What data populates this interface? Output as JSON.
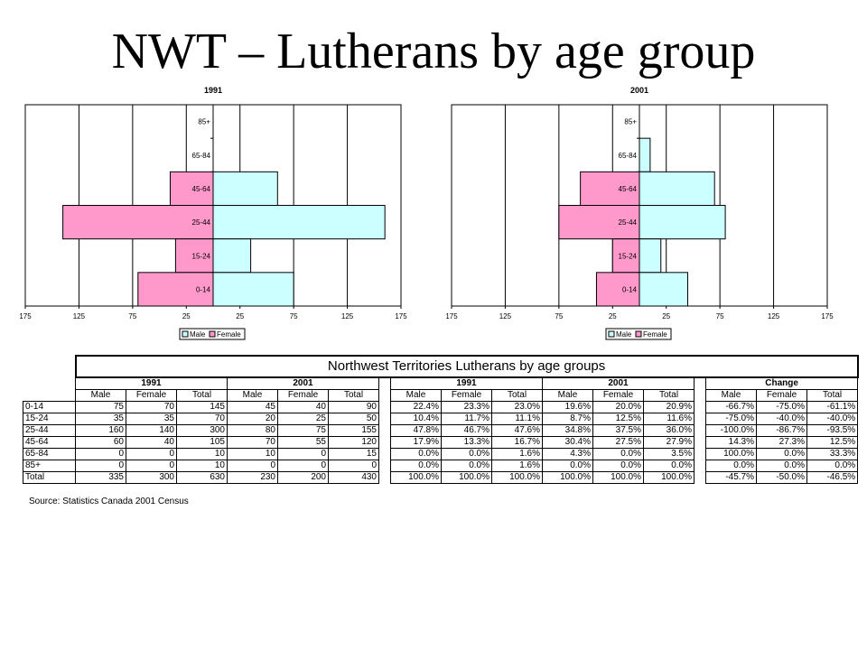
{
  "title": "NWT – Lutherans by age group",
  "chart_data": [
    {
      "type": "bar",
      "orientation": "horizontal-population-pyramid",
      "title": "1991",
      "categories": [
        "85+",
        "65-84",
        "45-64",
        "25-44",
        "15-24",
        "0-14"
      ],
      "series": [
        {
          "name": "Male",
          "values": [
            0,
            0,
            60,
            160,
            35,
            75
          ],
          "color": "#ccffff"
        },
        {
          "name": "Female",
          "values": [
            0,
            0,
            40,
            140,
            35,
            70
          ],
          "color": "#ff99cc"
        }
      ],
      "xlim": [
        -175,
        175
      ],
      "xticks": [
        "175",
        "125",
        "75",
        "25",
        "25",
        "75",
        "125",
        "175"
      ],
      "grid": true,
      "legend": "bottom"
    },
    {
      "type": "bar",
      "orientation": "horizontal-population-pyramid",
      "title": "2001",
      "categories": [
        "85+",
        "65-84",
        "45-64",
        "25-44",
        "15-24",
        "0-14"
      ],
      "series": [
        {
          "name": "Male",
          "values": [
            0,
            10,
            70,
            80,
            20,
            45
          ],
          "color": "#ccffff"
        },
        {
          "name": "Female",
          "values": [
            0,
            0,
            55,
            75,
            25,
            40
          ],
          "color": "#ff99cc"
        }
      ],
      "xlim": [
        -175,
        175
      ],
      "xticks": [
        "175",
        "125",
        "75",
        "25",
        "25",
        "75",
        "125",
        "175"
      ],
      "grid": true,
      "legend": "bottom"
    }
  ],
  "table": {
    "title": "Northwest Territories Lutherans by age groups",
    "groups": [
      "1991",
      "2001",
      "1991",
      "2001",
      "Change"
    ],
    "columns": [
      "Male",
      "Female",
      "Total"
    ],
    "rows": [
      {
        "label": "0-14",
        "counts": [
          "75",
          "70",
          "145",
          "45",
          "40",
          "90"
        ],
        "pct": [
          "22.4%",
          "23.3%",
          "23.0%",
          "19.6%",
          "20.0%",
          "20.9%"
        ],
        "change": [
          "-66.7%",
          "-75.0%",
          "-61.1%"
        ]
      },
      {
        "label": "15-24",
        "counts": [
          "35",
          "35",
          "70",
          "20",
          "25",
          "50"
        ],
        "pct": [
          "10.4%",
          "11.7%",
          "11.1%",
          "8.7%",
          "12.5%",
          "11.6%"
        ],
        "change": [
          "-75.0%",
          "-40.0%",
          "-40.0%"
        ]
      },
      {
        "label": "25-44",
        "counts": [
          "160",
          "140",
          "300",
          "80",
          "75",
          "155"
        ],
        "pct": [
          "47.8%",
          "46.7%",
          "47.6%",
          "34.8%",
          "37.5%",
          "36.0%"
        ],
        "change": [
          "-100.0%",
          "-86.7%",
          "-93.5%"
        ]
      },
      {
        "label": "45-64",
        "counts": [
          "60",
          "40",
          "105",
          "70",
          "55",
          "120"
        ],
        "pct": [
          "17.9%",
          "13.3%",
          "16.7%",
          "30.4%",
          "27.5%",
          "27.9%"
        ],
        "change": [
          "14.3%",
          "27.3%",
          "12.5%"
        ]
      },
      {
        "label": "65-84",
        "counts": [
          "0",
          "0",
          "10",
          "10",
          "0",
          "15"
        ],
        "pct": [
          "0.0%",
          "0.0%",
          "1.6%",
          "4.3%",
          "0.0%",
          "3.5%"
        ],
        "change": [
          "100.0%",
          "0.0%",
          "33.3%"
        ]
      },
      {
        "label": "85+",
        "counts": [
          "0",
          "0",
          "10",
          "0",
          "0",
          "0"
        ],
        "pct": [
          "0.0%",
          "0.0%",
          "1.6%",
          "0.0%",
          "0.0%",
          "0.0%"
        ],
        "change": [
          "0.0%",
          "0.0%",
          "0.0%"
        ]
      },
      {
        "label": "Total",
        "counts": [
          "335",
          "300",
          "630",
          "230",
          "200",
          "430"
        ],
        "pct": [
          "100.0%",
          "100.0%",
          "100.0%",
          "100.0%",
          "100.0%",
          "100.0%"
        ],
        "change": [
          "-45.7%",
          "-50.0%",
          "-46.5%"
        ]
      }
    ],
    "source": "Source: Statistics Canada 2001 Census"
  }
}
